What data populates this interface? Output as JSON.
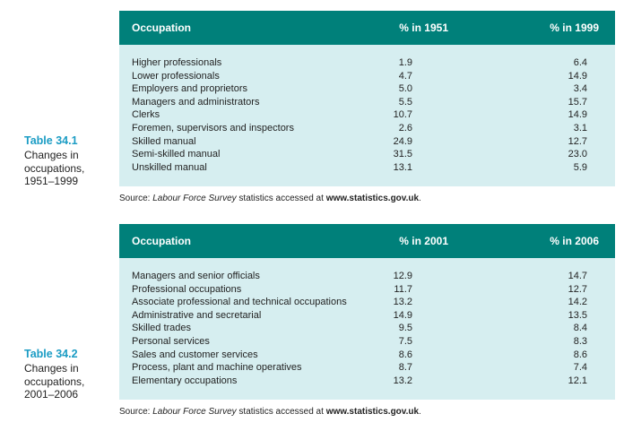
{
  "tables": [
    {
      "label": "Table 34.1",
      "caption": [
        "Changes in",
        "occupations,",
        "1951–1999"
      ],
      "header": [
        "Occupation",
        "% in 1951",
        "% in 1999"
      ],
      "rows": [
        [
          "Higher professionals",
          "1.9",
          "6.4"
        ],
        [
          "Lower professionals",
          "4.7",
          "14.9"
        ],
        [
          "Employers and proprietors",
          "5.0",
          "3.4"
        ],
        [
          "Managers and administrators",
          "5.5",
          "15.7"
        ],
        [
          "Clerks",
          "10.7",
          "14.9"
        ],
        [
          "Foremen, supervisors and inspectors",
          "2.6",
          "3.1"
        ],
        [
          "Skilled manual",
          "24.9",
          "12.7"
        ],
        [
          "Semi-skilled manual",
          "31.5",
          "23.0"
        ],
        [
          "Unskilled manual",
          "13.1",
          "5.9"
        ]
      ],
      "source": {
        "prefix": "Source: ",
        "title": "Labour Force Survey",
        "middle": " statistics accessed at ",
        "url": "www.statistics.gov.uk",
        "suffix": "."
      }
    },
    {
      "label": "Table 34.2",
      "caption": [
        "Changes in",
        "occupations,",
        "2001–2006"
      ],
      "header": [
        "Occupation",
        "% in 2001",
        "% in 2006"
      ],
      "rows": [
        [
          "Managers and senior officials",
          "12.9",
          "14.7"
        ],
        [
          "Professional occupations",
          "11.7",
          "12.7"
        ],
        [
          "Associate professional and technical occupations",
          "13.2",
          "14.2"
        ],
        [
          "Administrative and secretarial",
          "14.9",
          "13.5"
        ],
        [
          "Skilled trades",
          "9.5",
          "8.4"
        ],
        [
          "Personal services",
          "7.5",
          "8.3"
        ],
        [
          "Sales and customer services",
          "8.6",
          "8.6"
        ],
        [
          "Process, plant and machine operatives",
          "8.7",
          "7.4"
        ],
        [
          "Elementary occupations",
          "13.2",
          "12.1"
        ]
      ],
      "source": {
        "prefix": "Source: ",
        "title": "Labour Force Survey",
        "middle": " statistics accessed at ",
        "url": "www.statistics.gov.uk",
        "suffix": "."
      }
    }
  ]
}
